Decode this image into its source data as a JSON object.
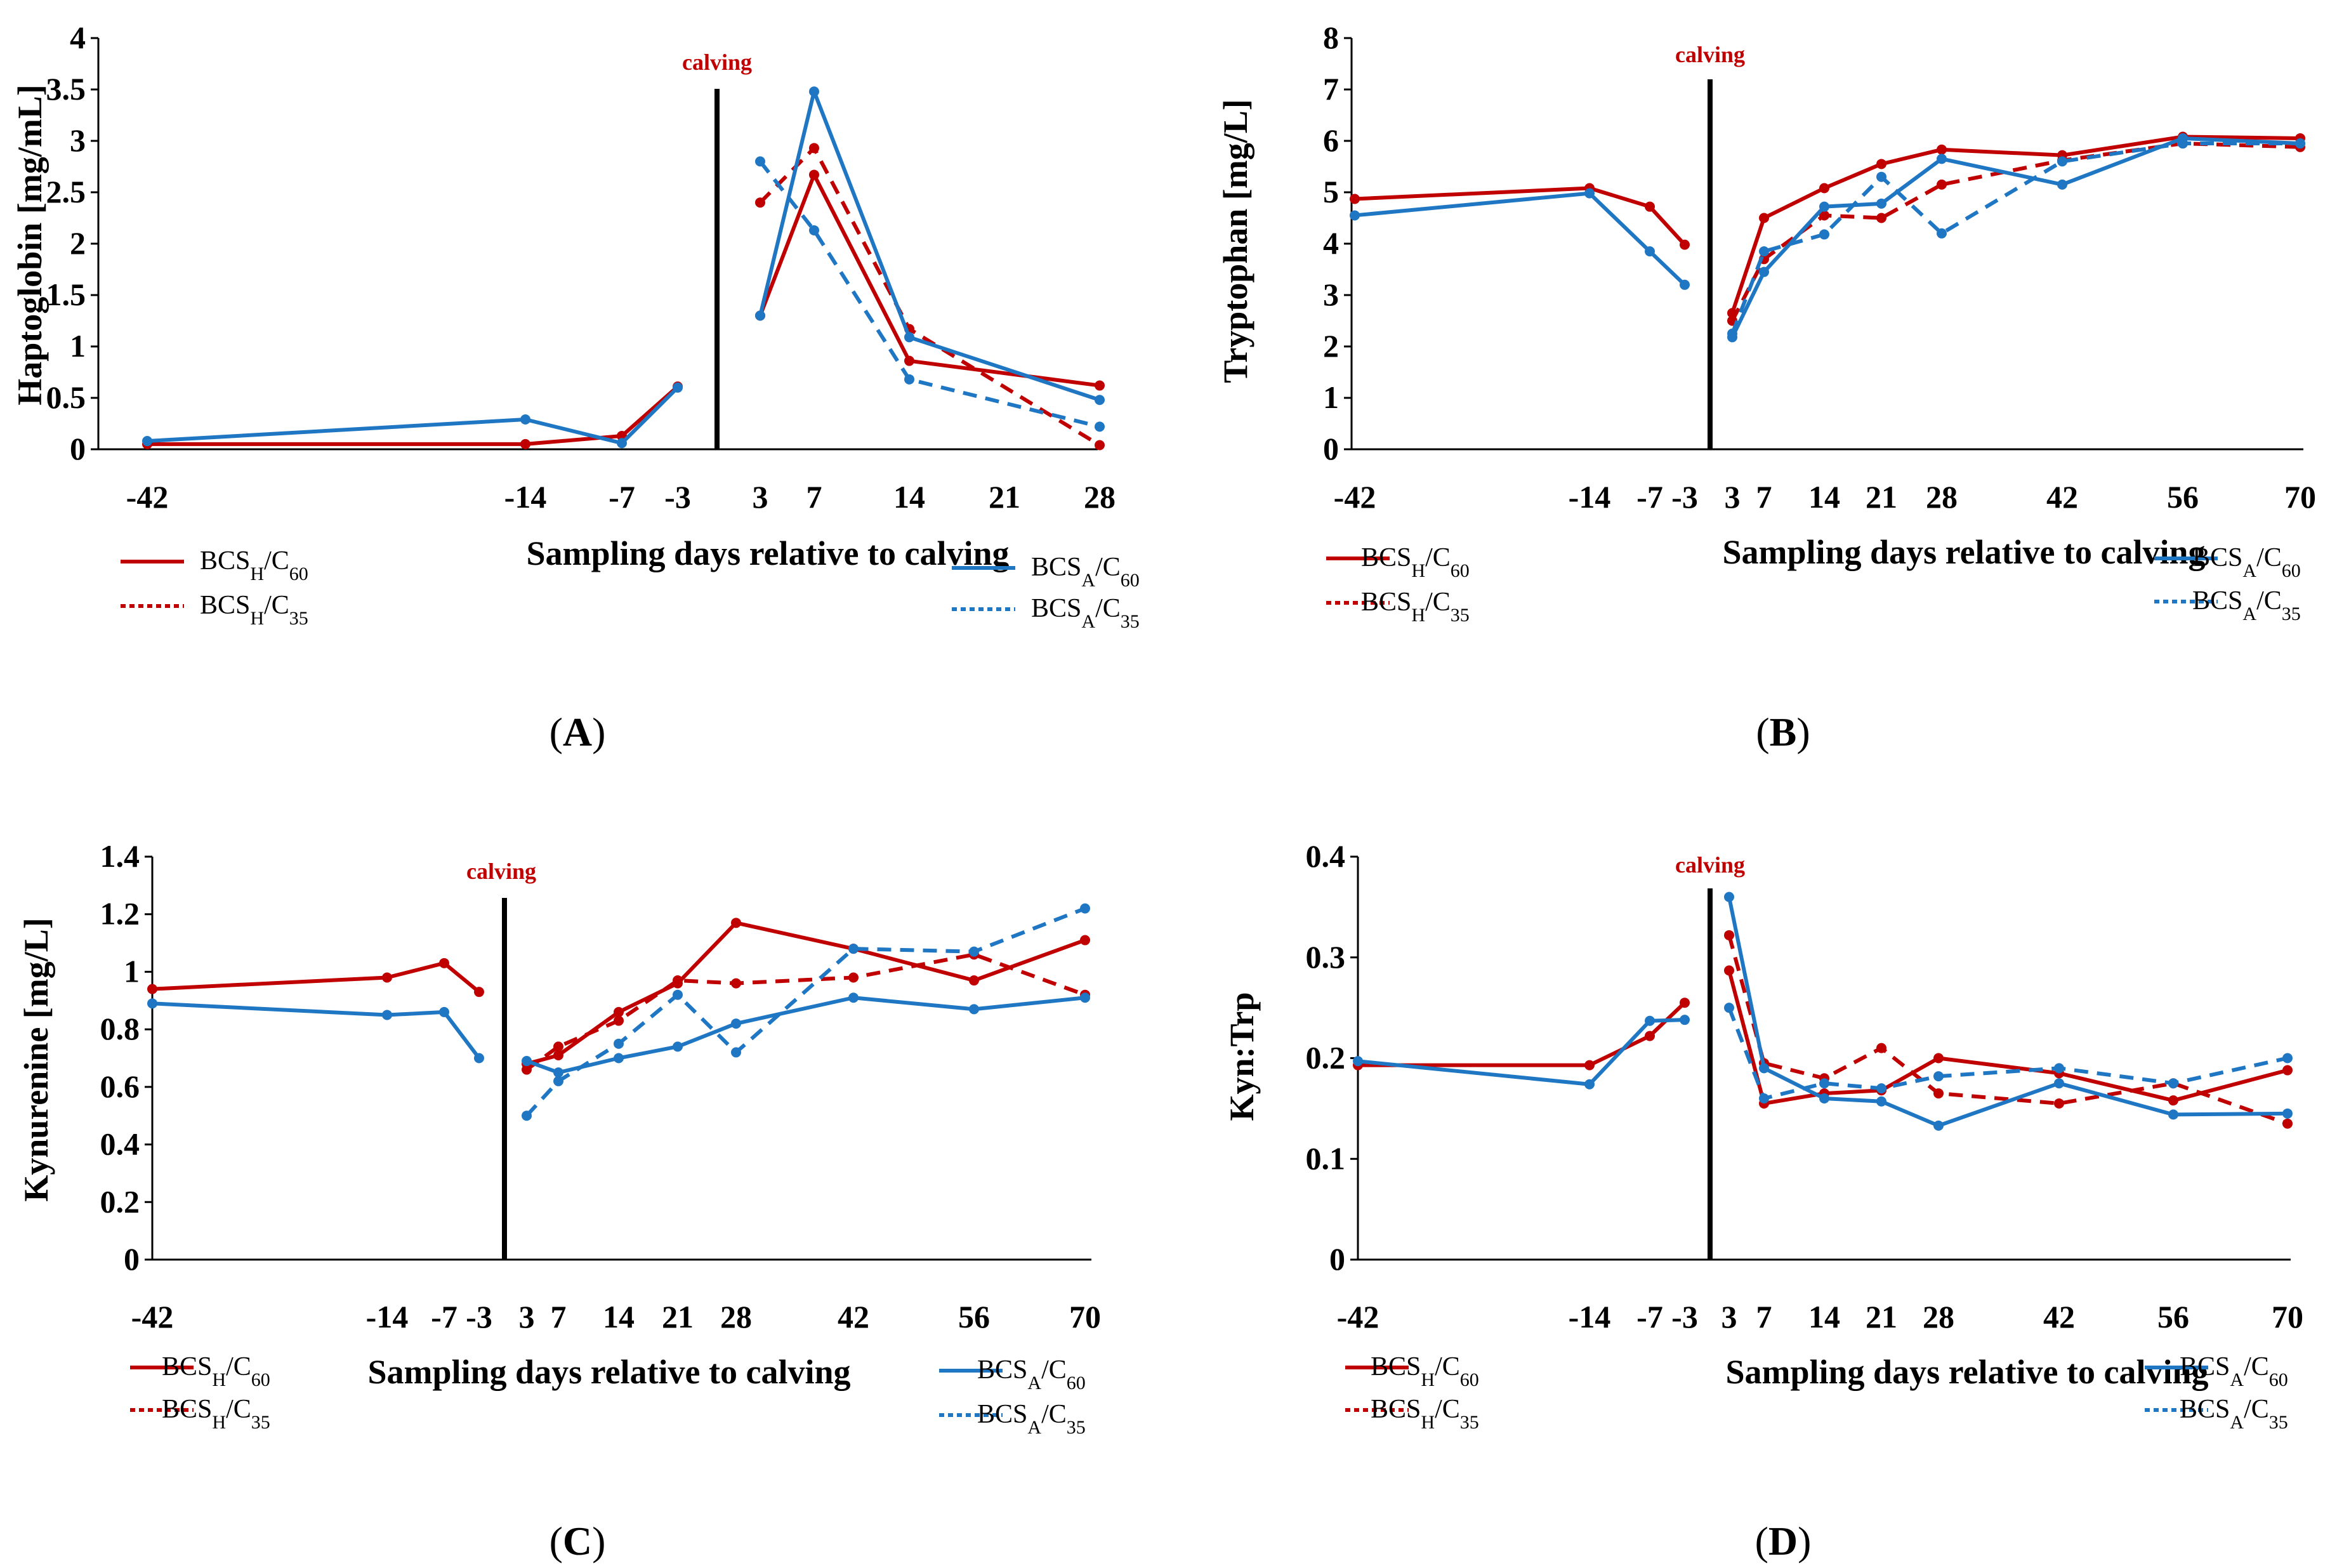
{
  "colors": {
    "bcs_h": "#c00000",
    "bcs_a": "#1f77c4",
    "axis": "#000000"
  },
  "calving_label": "calving",
  "legend": {
    "h60": {
      "base": "BCS",
      "sub1": "H",
      "mid": "/C",
      "sub2": "60"
    },
    "h35": {
      "base": "BCS",
      "sub1": "H",
      "mid": "/C",
      "sub2": "35"
    },
    "a60": {
      "base": "BCS",
      "sub1": "A",
      "mid": "/C",
      "sub2": "60"
    },
    "a35": {
      "base": "BCS",
      "sub1": "A",
      "mid": "/C",
      "sub2": "35"
    }
  },
  "chart_data": [
    {
      "id": "A",
      "panel_label": "A",
      "type": "line",
      "ylabel": "Haptoglobin [mg/mL]",
      "xlabel": "Sampling days relative to calving",
      "ylim": [
        0,
        4
      ],
      "yticks": [
        "0",
        "0.5",
        "1",
        "1.5",
        "2",
        "2.5",
        "3",
        "3.5",
        "4"
      ],
      "xticks": [
        "-42",
        "-14",
        "-7",
        "-3",
        "3",
        "7",
        "14",
        "21",
        "28"
      ],
      "series": [
        {
          "name": "BCSH/C60",
          "key": "h60",
          "pre_x": [
            "-42",
            "-14",
            "-7",
            "-3"
          ],
          "pre_y": [
            0.05,
            0.05,
            0.13,
            0.61
          ],
          "post_x": [
            "3",
            "7",
            "14",
            "28"
          ],
          "post_y": [
            1.3,
            2.67,
            0.86,
            0.62
          ]
        },
        {
          "name": "BCSH/C35",
          "key": "h35",
          "pre_x": [],
          "pre_y": [],
          "post_x": [
            "3",
            "7",
            "14",
            "28"
          ],
          "post_y": [
            2.4,
            2.93,
            1.17,
            0.04
          ]
        },
        {
          "name": "BCSA/C60",
          "key": "a60",
          "pre_x": [
            "-42",
            "-14",
            "-7",
            "-3"
          ],
          "pre_y": [
            0.08,
            0.29,
            0.06,
            0.6
          ],
          "post_x": [
            "3",
            "7",
            "14",
            "28"
          ],
          "post_y": [
            1.3,
            3.48,
            1.09,
            0.48
          ]
        },
        {
          "name": "BCSA/C35",
          "key": "a35",
          "pre_x": [],
          "pre_y": [],
          "post_x": [
            "3",
            "7",
            "14",
            "28"
          ],
          "post_y": [
            2.8,
            2.13,
            0.68,
            0.22
          ]
        }
      ]
    },
    {
      "id": "B",
      "panel_label": "B",
      "type": "line",
      "ylabel": "Tryptophan [mg/L]",
      "xlabel": "Sampling days relative to calving",
      "ylim": [
        0,
        8
      ],
      "yticks": [
        "0",
        "1",
        "2",
        "3",
        "4",
        "5",
        "6",
        "7",
        "8"
      ],
      "xticks": [
        "-42",
        "-14",
        "-7",
        "-3",
        "3",
        "7",
        "14",
        "21",
        "28",
        "42",
        "56",
        "70"
      ],
      "series": [
        {
          "name": "BCSH/C60",
          "key": "h60",
          "pre_x": [
            "-42",
            "-14",
            "-7",
            "-3"
          ],
          "pre_y": [
            4.87,
            5.08,
            4.72,
            3.98
          ],
          "post_x": [
            "3",
            "7",
            "14",
            "21",
            "28",
            "42",
            "56",
            "70"
          ],
          "post_y": [
            2.65,
            4.5,
            5.08,
            5.55,
            5.83,
            5.72,
            6.08,
            6.05
          ]
        },
        {
          "name": "BCSH/C35",
          "key": "h35",
          "pre_x": [],
          "pre_y": [],
          "post_x": [
            "3",
            "7",
            "14",
            "21",
            "28",
            "42",
            "56",
            "70"
          ],
          "post_y": [
            2.5,
            3.7,
            4.55,
            4.5,
            5.15,
            5.62,
            5.95,
            5.88
          ]
        },
        {
          "name": "BCSA/C60",
          "key": "a60",
          "pre_x": [
            "-42",
            "-14",
            "-7",
            "-3"
          ],
          "pre_y": [
            4.55,
            4.98,
            3.85,
            3.2
          ],
          "post_x": [
            "3",
            "7",
            "14",
            "21",
            "28",
            "42",
            "56",
            "70"
          ],
          "post_y": [
            2.18,
            3.45,
            4.72,
            4.78,
            5.65,
            5.15,
            6.05,
            5.95
          ]
        },
        {
          "name": "BCSA/C35",
          "key": "a35",
          "pre_x": [],
          "pre_y": [],
          "post_x": [
            "3",
            "7",
            "14",
            "21",
            "28",
            "42",
            "56",
            "70"
          ],
          "post_y": [
            2.25,
            3.85,
            4.18,
            5.3,
            4.2,
            5.6,
            5.95,
            5.95
          ]
        }
      ]
    },
    {
      "id": "C",
      "panel_label": "C",
      "type": "line",
      "ylabel": "Kynurenine [mg/L]",
      "xlabel": "Sampling days relative to calving",
      "ylim": [
        0,
        1.4
      ],
      "yticks": [
        "0",
        "0.2",
        "0.4",
        "0.6",
        "0.8",
        "1",
        "1.2",
        "1.4"
      ],
      "xticks": [
        "-42",
        "-14",
        "-7",
        "-3",
        "3",
        "7",
        "14",
        "21",
        "28",
        "42",
        "56",
        "70"
      ],
      "series": [
        {
          "name": "BCSH/C60",
          "key": "h60",
          "pre_x": [
            "-42",
            "-14",
            "-7",
            "-3"
          ],
          "pre_y": [
            0.94,
            0.98,
            1.03,
            0.93
          ],
          "post_x": [
            "3",
            "7",
            "14",
            "21",
            "28",
            "42",
            "56",
            "70"
          ],
          "post_y": [
            0.68,
            0.71,
            0.86,
            0.96,
            1.17,
            1.08,
            0.97,
            1.11
          ]
        },
        {
          "name": "BCSH/C35",
          "key": "h35",
          "pre_x": [],
          "pre_y": [],
          "post_x": [
            "3",
            "7",
            "14",
            "21",
            "28",
            "42",
            "56",
            "70"
          ],
          "post_y": [
            0.66,
            0.74,
            0.83,
            0.97,
            0.96,
            0.98,
            1.06,
            0.92
          ]
        },
        {
          "name": "BCSA/C60",
          "key": "a60",
          "pre_x": [
            "-42",
            "-14",
            "-7",
            "-3"
          ],
          "pre_y": [
            0.89,
            0.85,
            0.86,
            0.7
          ],
          "post_x": [
            "3",
            "7",
            "14",
            "21",
            "28",
            "42",
            "56",
            "70"
          ],
          "post_y": [
            0.69,
            0.65,
            0.7,
            0.74,
            0.82,
            0.91,
            0.87,
            0.91
          ]
        },
        {
          "name": "BCSA/C35",
          "key": "a35",
          "pre_x": [],
          "pre_y": [],
          "post_x": [
            "3",
            "7",
            "14",
            "21",
            "28",
            "42",
            "56",
            "70"
          ],
          "post_y": [
            0.5,
            0.62,
            0.75,
            0.92,
            0.72,
            1.08,
            1.07,
            1.22
          ]
        }
      ]
    },
    {
      "id": "D",
      "panel_label": "D",
      "type": "line",
      "ylabel": "Kyn:Trp",
      "xlabel": "Sampling days relative to calving",
      "ylim": [
        0,
        0.4
      ],
      "yticks": [
        "0",
        "0.1",
        "0.2",
        "0.3",
        "0.4"
      ],
      "xticks": [
        "-42",
        "-14",
        "-7",
        "-3",
        "3",
        "7",
        "14",
        "21",
        "28",
        "42",
        "56",
        "70"
      ],
      "series": [
        {
          "name": "BCSH/C60",
          "key": "h60",
          "pre_x": [
            "-42",
            "-14",
            "-7",
            "-3"
          ],
          "pre_y": [
            0.193,
            0.193,
            0.222,
            0.255
          ],
          "post_x": [
            "3",
            "7",
            "14",
            "21",
            "28",
            "42",
            "56",
            "70"
          ],
          "post_y": [
            0.287,
            0.155,
            0.165,
            0.168,
            0.2,
            0.185,
            0.158,
            0.188
          ]
        },
        {
          "name": "BCSH/C35",
          "key": "h35",
          "pre_x": [],
          "pre_y": [],
          "post_x": [
            "3",
            "7",
            "14",
            "21",
            "28",
            "42",
            "56",
            "70"
          ],
          "post_y": [
            0.322,
            0.195,
            0.18,
            0.21,
            0.165,
            0.155,
            0.175,
            0.135
          ]
        },
        {
          "name": "BCSA/C60",
          "key": "a60",
          "pre_x": [
            "-42",
            "-14",
            "-7",
            "-3"
          ],
          "pre_y": [
            0.197,
            0.174,
            0.237,
            0.238
          ],
          "post_x": [
            "3",
            "7",
            "14",
            "21",
            "28",
            "42",
            "56",
            "70"
          ],
          "post_y": [
            0.36,
            0.19,
            0.16,
            0.157,
            0.133,
            0.175,
            0.144,
            0.145
          ]
        },
        {
          "name": "BCSA/C35",
          "key": "a35",
          "pre_x": [],
          "pre_y": [],
          "post_x": [
            "3",
            "7",
            "14",
            "21",
            "28",
            "42",
            "56",
            "70"
          ],
          "post_y": [
            0.25,
            0.16,
            0.175,
            0.17,
            0.182,
            0.19,
            0.175,
            0.2
          ]
        }
      ]
    }
  ]
}
